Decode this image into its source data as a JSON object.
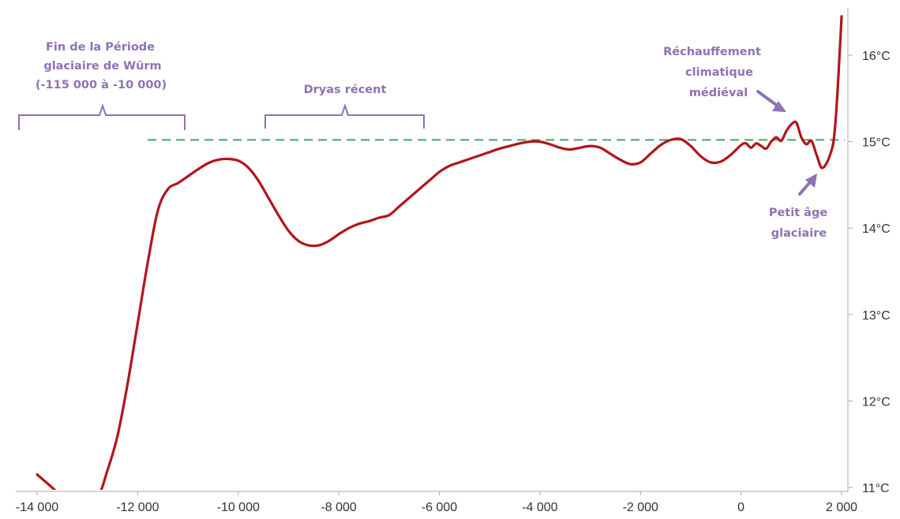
{
  "chart_data": {
    "type": "line",
    "title": "",
    "xlabel": "",
    "ylabel": "",
    "xlim": [
      -14000,
      2000
    ],
    "ylim": [
      11,
      16.5
    ],
    "grid": false,
    "y_axis_side": "right",
    "x_ticks": [
      {
        "value": -14000,
        "label": "-14 000"
      },
      {
        "value": -12000,
        "label": "-12 000"
      },
      {
        "value": -10000,
        "label": "-10 000"
      },
      {
        "value": -8000,
        "label": "-8 000"
      },
      {
        "value": -6000,
        "label": "-6 000"
      },
      {
        "value": -4000,
        "label": "-4 000"
      },
      {
        "value": -2000,
        "label": "-2 000"
      },
      {
        "value": 0,
        "label": "0"
      },
      {
        "value": 2000,
        "label": "2 000"
      }
    ],
    "y_ticks": [
      {
        "value": 11,
        "label": "11°C"
      },
      {
        "value": 12,
        "label": "12°C"
      },
      {
        "value": 13,
        "label": "13°C"
      },
      {
        "value": 14,
        "label": "14°C"
      },
      {
        "value": 15,
        "label": "15°C"
      },
      {
        "value": 16,
        "label": "16°C"
      }
    ],
    "series": [
      {
        "color": "#b3141b",
        "x": [
          -14000,
          -13800,
          -13500,
          -13200,
          -12800,
          -12600,
          -12400,
          -12200,
          -12000,
          -11800,
          -11600,
          -11400,
          -11200,
          -11000,
          -10800,
          -10600,
          -10400,
          -10200,
          -10000,
          -9800,
          -9600,
          -9400,
          -9200,
          -9000,
          -8800,
          -8600,
          -8400,
          -8200,
          -8000,
          -7800,
          -7600,
          -7400,
          -7200,
          -7000,
          -6800,
          -6600,
          -6400,
          -6200,
          -6000,
          -5800,
          -5600,
          -5400,
          -5200,
          -5000,
          -4800,
          -4600,
          -4400,
          -4200,
          -4000,
          -3800,
          -3600,
          -3400,
          -3200,
          -3000,
          -2800,
          -2600,
          -2400,
          -2200,
          -2000,
          -1800,
          -1600,
          -1400,
          -1200,
          -1000,
          -800,
          -600,
          -400,
          -200,
          0,
          100,
          200,
          300,
          400,
          500,
          600,
          700,
          800,
          900,
          1000,
          1100,
          1200,
          1300,
          1400,
          1500,
          1600,
          1700,
          1800,
          1850,
          1900,
          1950,
          2000
        ],
        "y": [
          11.15,
          11.05,
          10.9,
          10.8,
          10.9,
          11.2,
          11.6,
          12.2,
          12.9,
          13.6,
          14.2,
          14.45,
          14.52,
          14.6,
          14.68,
          14.75,
          14.79,
          14.8,
          14.78,
          14.7,
          14.55,
          14.35,
          14.15,
          13.97,
          13.85,
          13.8,
          13.8,
          13.85,
          13.93,
          14.0,
          14.05,
          14.08,
          14.12,
          14.15,
          14.25,
          14.35,
          14.45,
          14.55,
          14.65,
          14.72,
          14.76,
          14.8,
          14.84,
          14.88,
          14.92,
          14.95,
          14.98,
          15.0,
          15.0,
          14.97,
          14.93,
          14.91,
          14.93,
          14.95,
          14.93,
          14.86,
          14.79,
          14.74,
          14.76,
          14.86,
          14.96,
          15.02,
          15.03,
          14.95,
          14.83,
          14.76,
          14.77,
          14.85,
          14.96,
          14.98,
          14.93,
          14.98,
          14.95,
          14.92,
          15.0,
          15.05,
          15.01,
          15.12,
          15.2,
          15.22,
          15.05,
          14.97,
          15.01,
          14.85,
          14.7,
          14.75,
          14.9,
          15.05,
          15.4,
          15.9,
          16.45
        ]
      }
    ],
    "reference_lines": [
      {
        "value": 15.02,
        "orientation": "horizontal",
        "x_from": -11800,
        "style": "dashed",
        "color": "#3aa86b"
      }
    ],
    "brackets": [
      {
        "from": -14000,
        "to": -11200
      },
      {
        "from": -9500,
        "to": -6300
      }
    ],
    "annotations": {
      "wurm": [
        "Fin de la Période",
        "glaciaire de Würm",
        "(-115 000 à -10 000)"
      ],
      "dryas": [
        "Dryas récent"
      ],
      "medieval": [
        "Réchauffement",
        "climatique",
        "médiéval"
      ],
      "little_ice_age": [
        "Petit âge",
        "glaciaire"
      ]
    },
    "colors": {
      "line": "#b3141b",
      "annotation": "#8e72b4",
      "reference": "#3aa86b",
      "axis": "#aaaaaa",
      "tick_text": "#333333"
    }
  }
}
